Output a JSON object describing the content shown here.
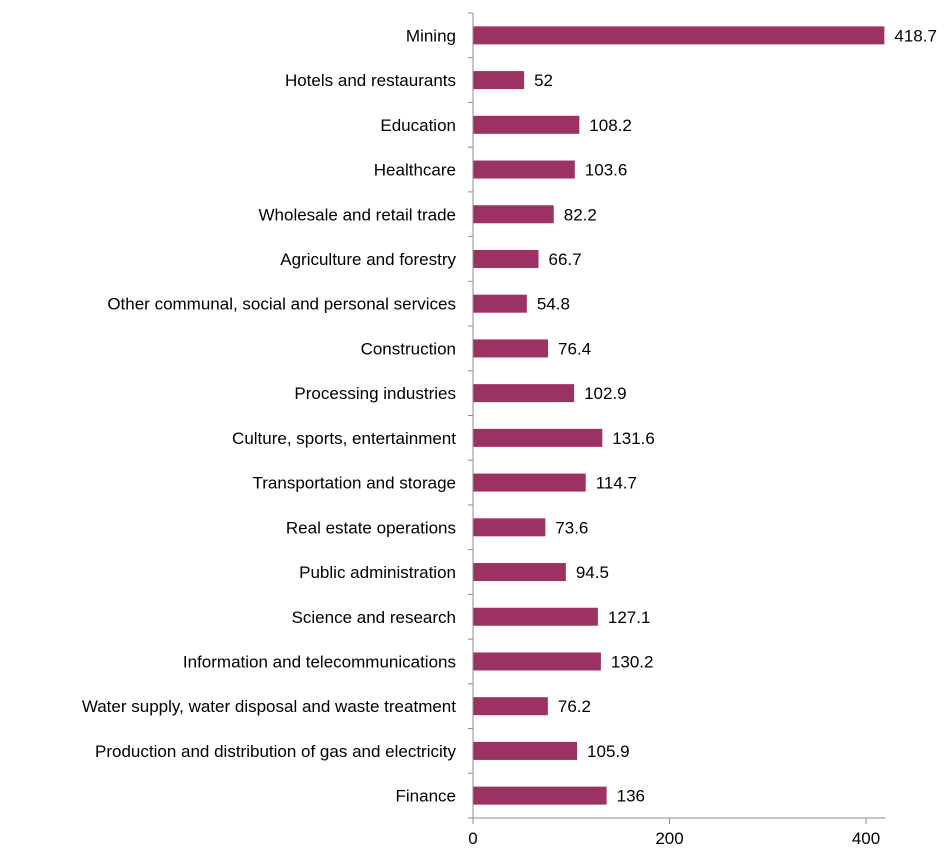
{
  "chart_data": {
    "type": "bar",
    "orientation": "horizontal",
    "categories": [
      "Mining",
      "Hotels and restaurants",
      "Education",
      "Healthcare",
      "Wholesale and retail trade",
      "Agriculture and forestry",
      "Other communal, social and personal services",
      "Construction",
      "Processing industries",
      "Culture, sports, entertainment",
      "Transportation and storage",
      "Real estate operations",
      "Public administration",
      "Science and research",
      "Information and telecommunications",
      "Water supply, water disposal and waste treatment",
      "Production and distribution of gas and electricity ",
      "Finance"
    ],
    "values": [
      418.7,
      52,
      108.2,
      103.6,
      82.2,
      66.7,
      54.8,
      76.4,
      102.9,
      131.6,
      114.7,
      73.6,
      94.5,
      127.1,
      130.2,
      76.2,
      105.9,
      136
    ],
    "value_labels": [
      "418.7",
      "52",
      "108.2",
      "103.6",
      "82.2",
      "66.7",
      "54.8",
      "76.4",
      "102.9",
      "131.6",
      "114.7",
      "73.6",
      "94.5",
      "127.1",
      "130.2",
      "76.2",
      "105.9",
      "136"
    ],
    "x_ticks": [
      0,
      200,
      400
    ],
    "x_tick_labels": [
      "0",
      "200",
      "400"
    ],
    "xlim": [
      0,
      420
    ],
    "grid": false,
    "legend": "none",
    "bar_color": "#9b3263"
  }
}
